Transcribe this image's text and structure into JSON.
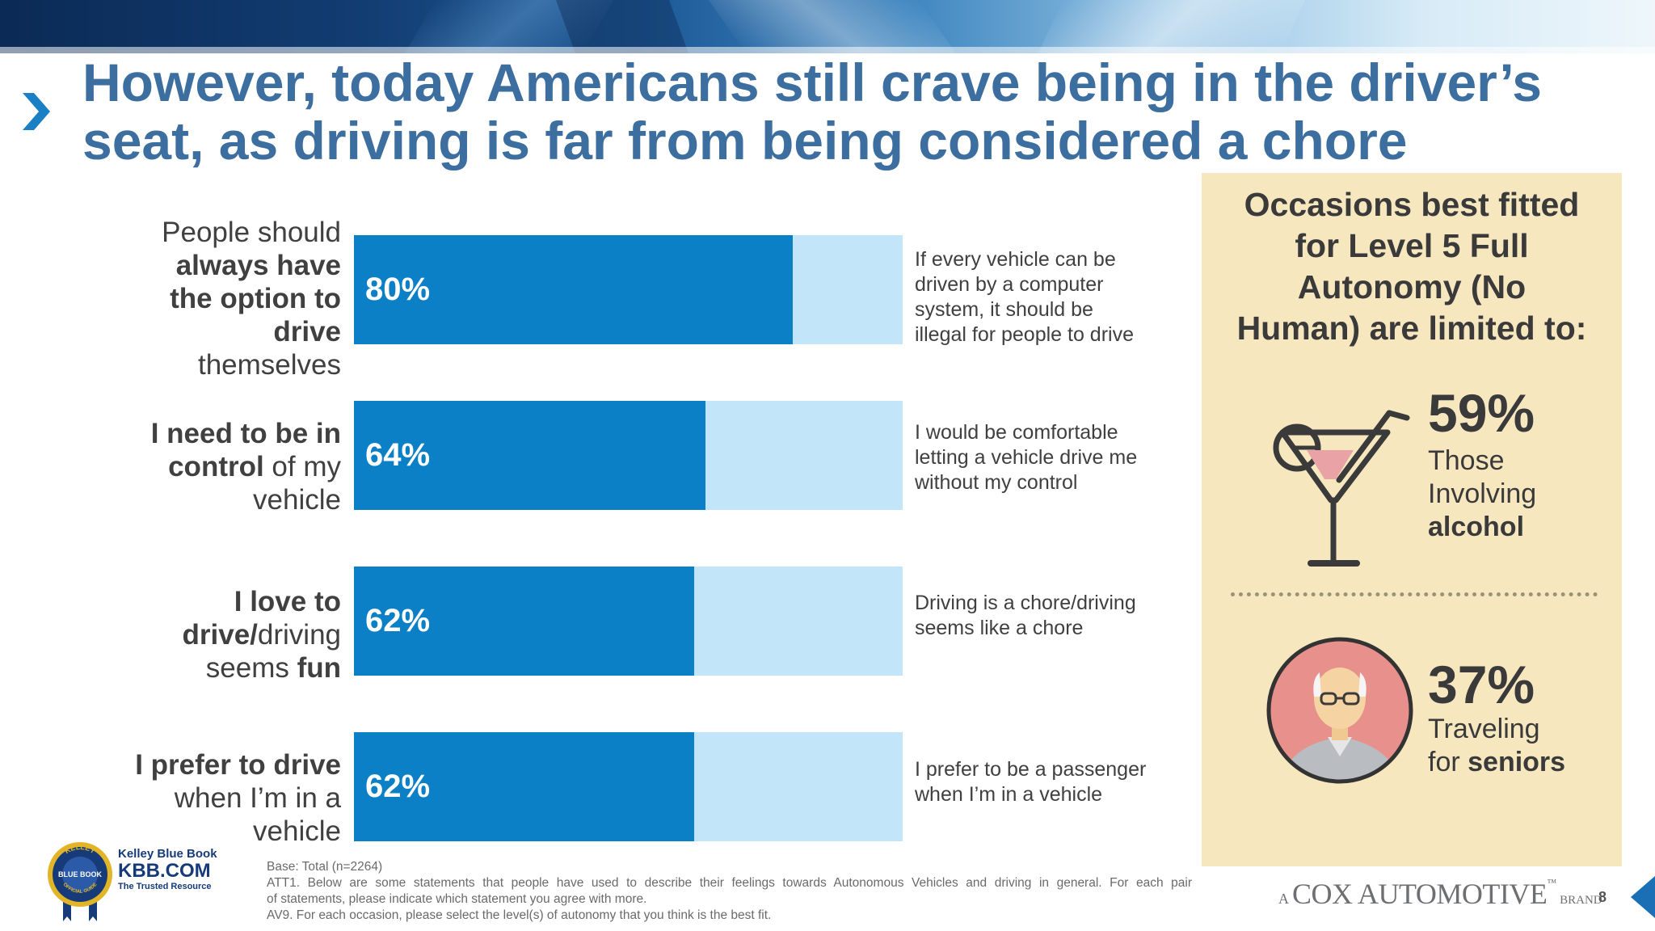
{
  "title": {
    "line1": "However, today Americans still crave being in the driver’s",
    "line2": "seat, as driving is far from being considered a chore"
  },
  "chart_data": {
    "type": "bar",
    "orientation": "horizontal",
    "stacked_percent": true,
    "ylim": [
      0,
      100
    ],
    "categories": [
      "People should always have the option to drive themselves",
      "I need to be in control of my vehicle",
      "I love to drive/driving seems fun",
      "I prefer to drive when I’m in a vehicle"
    ],
    "series": [
      {
        "values": [
          80,
          64,
          62,
          62
        ],
        "color": "#0b80c6"
      },
      {
        "values": [
          20,
          36,
          38,
          38
        ],
        "color": "#c3e5fa"
      }
    ],
    "data_labels": [
      "80%",
      "64%",
      "62%",
      "62%"
    ],
    "rows": [
      {
        "label_lines": [
          [
            {
              "t": "People should",
              "b": false
            }
          ],
          [
            {
              "t": "always have",
              "b": true
            }
          ],
          [
            {
              "t": "the option to",
              "b": true
            }
          ],
          [
            {
              "t": "drive",
              "b": true
            }
          ],
          [
            {
              "t": "themselves",
              "b": false
            }
          ]
        ],
        "alt": [
          "If every vehicle can be",
          "driven by a computer",
          "system, it should be",
          "illegal for people to drive"
        ]
      },
      {
        "label_lines": [
          [
            {
              "t": "I need to be in",
              "b": true
            }
          ],
          [
            {
              "t": "control",
              "b": true
            },
            {
              "t": " of my",
              "b": false
            }
          ],
          [
            {
              "t": "vehicle",
              "b": false
            }
          ]
        ],
        "alt": [
          "I would be comfortable",
          "letting a vehicle drive me",
          "without my control"
        ]
      },
      {
        "label_lines": [
          [
            {
              "t": "I love to",
              "b": true
            }
          ],
          [
            {
              "t": "drive/",
              "b": true
            },
            {
              "t": "driving",
              "b": false
            }
          ],
          [
            {
              "t": "seems ",
              "b": false
            },
            {
              "t": "fun",
              "b": true
            }
          ]
        ],
        "alt": [
          "Driving is a chore/driving",
          "seems like a chore"
        ]
      },
      {
        "label_lines": [
          [
            {
              "t": "I prefer to drive",
              "b": true
            }
          ],
          [
            {
              "t": "when I’m in a",
              "b": false
            }
          ],
          [
            {
              "t": "vehicle",
              "b": false
            }
          ]
        ],
        "alt": [
          "I prefer to be a passenger",
          "when I’m in a vehicle"
        ]
      }
    ]
  },
  "panel": {
    "title_lines": [
      "Occasions best fitted",
      "for Level 5 Full",
      "Autonomy (No",
      "Human) are limited to:"
    ],
    "stats": [
      {
        "pct": "59%",
        "line1": "Those",
        "line2": "Involving",
        "bold": "alcohol",
        "icon": "cocktail-icon"
      },
      {
        "pct": "37%",
        "line1": "Traveling",
        "line2": "for ",
        "bold": "seniors",
        "icon": "senior-icon"
      }
    ]
  },
  "footnote": {
    "base": "Base: Total (n=2264)",
    "att1_a": "ATT1. Below are some statements that people have used to describe their feelings towards Autonomous Vehicles and driving in general. For each pair",
    "att1_b": "of statements, please indicate which statement you agree with more.",
    "av9": "AV9. For each occasion, please select the level(s) of autonomy that you think is the best fit."
  },
  "logo": {
    "seal_top": "KELLEY",
    "seal_mid": "BLUE BOOK",
    "seal_bottom": "OFFICIAL GUIDE",
    "brand": "Kelley Blue Book",
    "domain": "KBB.COM",
    "tagline": "The Trusted Resource"
  },
  "cox": {
    "prefix": "A",
    "name": "COX AUTOMOTIVE",
    "tm": "™",
    "suffix": "BRAND"
  },
  "page_number": "8",
  "colors": {
    "title": "#3c6e9f",
    "bar_primary": "#0b80c6",
    "bar_secondary": "#c3e5fa",
    "panel_bg": "#f6e7bf"
  }
}
